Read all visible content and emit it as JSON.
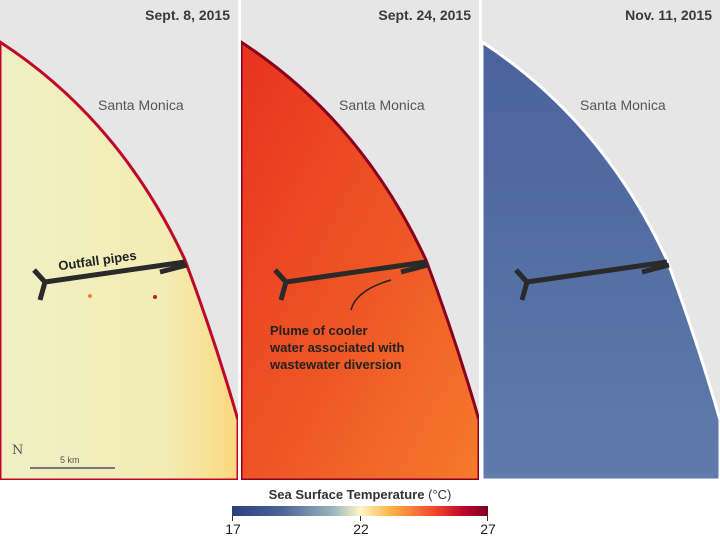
{
  "panels": [
    {
      "date": "Sept. 8, 2015",
      "city": "Santa Monica",
      "ocean": [
        "#eef0c4",
        "#f7e9a6",
        "#fbd97e"
      ],
      "coast": "#c0072b"
    },
    {
      "date": "Sept. 24, 2015",
      "city": "Santa Monica",
      "ocean": [
        "#e8321f",
        "#ef5a26",
        "#f67a2c"
      ],
      "coast": "#8a001f"
    },
    {
      "date": "Nov. 11, 2015",
      "city": "Santa Monica",
      "ocean": [
        "#4a639c",
        "#566fa4",
        "#5f7bab"
      ],
      "coast": "#ffffff"
    }
  ],
  "annotations": {
    "outfall": "Outfall pipes",
    "plume": [
      "Plume of cooler",
      "water associated with",
      "wastewater diversion"
    ]
  },
  "scale": {
    "north": "N",
    "bar": "5 km"
  },
  "colorbar": {
    "title": "Sea Surface Temperature",
    "unit": "(°C)",
    "min": "17",
    "mid": "22",
    "max": "27"
  }
}
